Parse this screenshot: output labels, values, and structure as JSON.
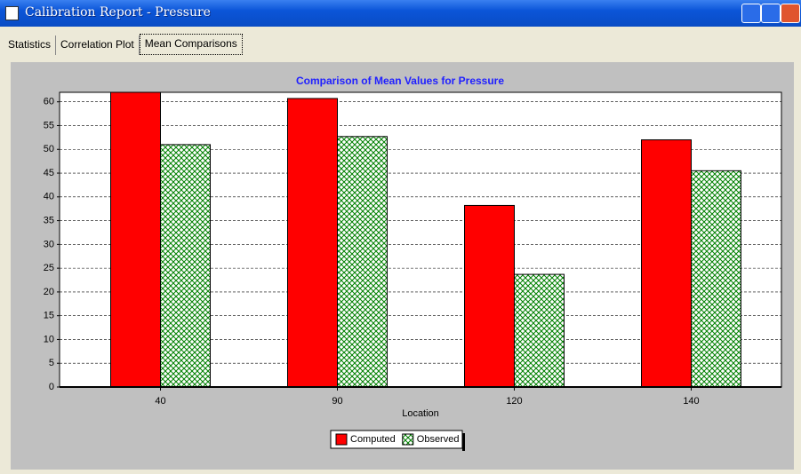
{
  "window": {
    "title": "Calibration Report - Pressure",
    "tabs": [
      "Statistics",
      "Correlation Plot",
      "Mean Comparisons"
    ]
  },
  "chart_data": {
    "type": "bar",
    "title": "Comparison of Mean Values for Pressure",
    "x_label": "Location",
    "categories": [
      40,
      90,
      120,
      140
    ],
    "series": [
      {
        "name": "Computed",
        "color": "#ff0000",
        "values": [
          62,
          60.7,
          38.2,
          52.0
        ]
      },
      {
        "name": "Observed",
        "color": "#008000",
        "hatch": true,
        "values": [
          51.0,
          52.7,
          23.7,
          45.5
        ]
      }
    ],
    "ylim": [
      0,
      62
    ],
    "yticks": [
      0,
      5,
      10,
      15,
      20,
      25,
      30,
      35,
      40,
      45,
      50,
      55,
      60
    ],
    "grid": true,
    "legend": "bottom"
  }
}
